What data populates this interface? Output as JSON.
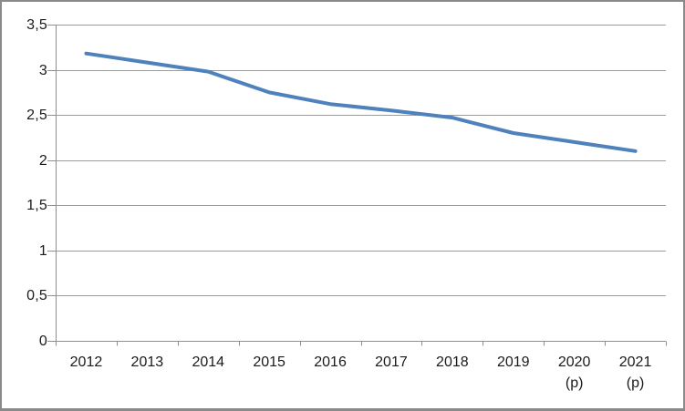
{
  "window": {
    "background_color": "#ffffff",
    "frame_color": "#8a8a8a"
  },
  "chart_data": {
    "type": "line",
    "title": "",
    "xlabel": "",
    "ylabel": "",
    "categories": [
      "2012",
      "2013",
      "2014",
      "2015",
      "2016",
      "2017",
      "2018",
      "2019",
      "2020 (p)",
      "2021 (p)"
    ],
    "x_tick_labels": [
      [
        "2012"
      ],
      [
        "2013"
      ],
      [
        "2014"
      ],
      [
        "2015"
      ],
      [
        "2016"
      ],
      [
        "2017"
      ],
      [
        "2018"
      ],
      [
        "2019"
      ],
      [
        "2020",
        "(p)"
      ],
      [
        "2021",
        "(p)"
      ]
    ],
    "series": [
      {
        "name": "series-1",
        "values": [
          3.18,
          3.08,
          2.98,
          2.75,
          2.62,
          2.55,
          2.47,
          2.3,
          2.2,
          2.1
        ],
        "color": "#4F81BD",
        "line_width": 4
      }
    ],
    "ylim": [
      0,
      3.5
    ],
    "y_tick_step": 0.5,
    "y_tick_labels_bottom_to_top": [
      "0",
      "0,5",
      "1",
      "1,5",
      "2",
      "2,5",
      "3",
      "3,5"
    ],
    "decimal_separator": ",",
    "grid": "horizontal-only",
    "legend_position": "none",
    "tick_marks": "outside"
  },
  "colors": {
    "line": "#4F81BD",
    "gridline": "#9c9c9c",
    "axis": "#8f8f8f",
    "text": "#1a1a1a",
    "frame": "#8a8a8a",
    "background": "#ffffff"
  }
}
